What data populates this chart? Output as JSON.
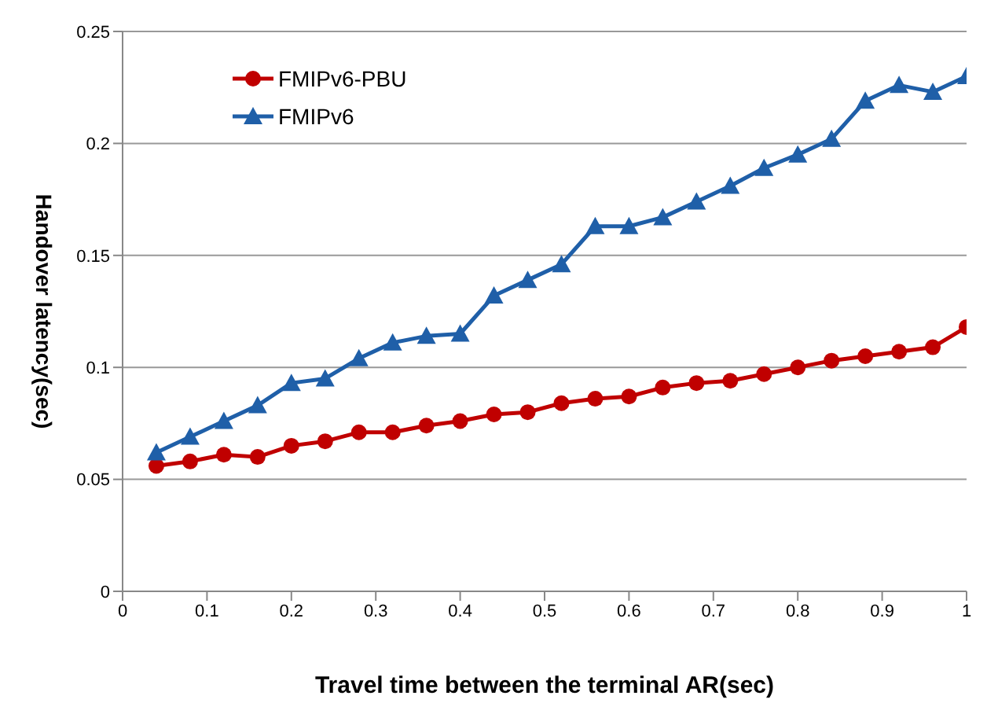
{
  "chart_data": {
    "type": "line",
    "xlabel": "Travel time between the terminal AR(sec)",
    "ylabel": "Handover latency(sec)",
    "x": [
      0.04,
      0.08,
      0.12,
      0.16,
      0.2,
      0.24,
      0.28,
      0.32,
      0.36,
      0.4,
      0.44,
      0.48,
      0.52,
      0.56,
      0.6,
      0.64,
      0.68,
      0.72,
      0.76,
      0.8,
      0.84,
      0.88,
      0.92,
      0.96,
      1.0
    ],
    "series": [
      {
        "name": "FMIPv6-PBU",
        "color": "#c00000",
        "marker": "circle",
        "values": [
          0.056,
          0.058,
          0.061,
          0.06,
          0.065,
          0.067,
          0.071,
          0.071,
          0.074,
          0.076,
          0.079,
          0.08,
          0.084,
          0.086,
          0.087,
          0.091,
          0.093,
          0.094,
          0.097,
          0.1,
          0.103,
          0.105,
          0.107,
          0.109,
          0.118
        ]
      },
      {
        "name": "FMIPv6",
        "color": "#1f5fa8",
        "marker": "triangle",
        "values": [
          0.062,
          0.069,
          0.076,
          0.083,
          0.093,
          0.095,
          0.104,
          0.111,
          0.114,
          0.115,
          0.132,
          0.139,
          0.146,
          0.163,
          0.163,
          0.167,
          0.174,
          0.181,
          0.189,
          0.195,
          0.202,
          0.219,
          0.226,
          0.223,
          0.23
        ]
      }
    ],
    "xlim": [
      0,
      1
    ],
    "xticks": [
      0,
      0.1,
      0.2,
      0.3,
      0.4,
      0.5,
      0.6,
      0.7,
      0.8,
      0.9,
      1
    ],
    "ylim": [
      0,
      0.25
    ],
    "yticks": [
      0,
      0.05,
      0.1,
      0.15,
      0.2,
      0.25
    ],
    "grid": "y",
    "legend": "top left"
  }
}
